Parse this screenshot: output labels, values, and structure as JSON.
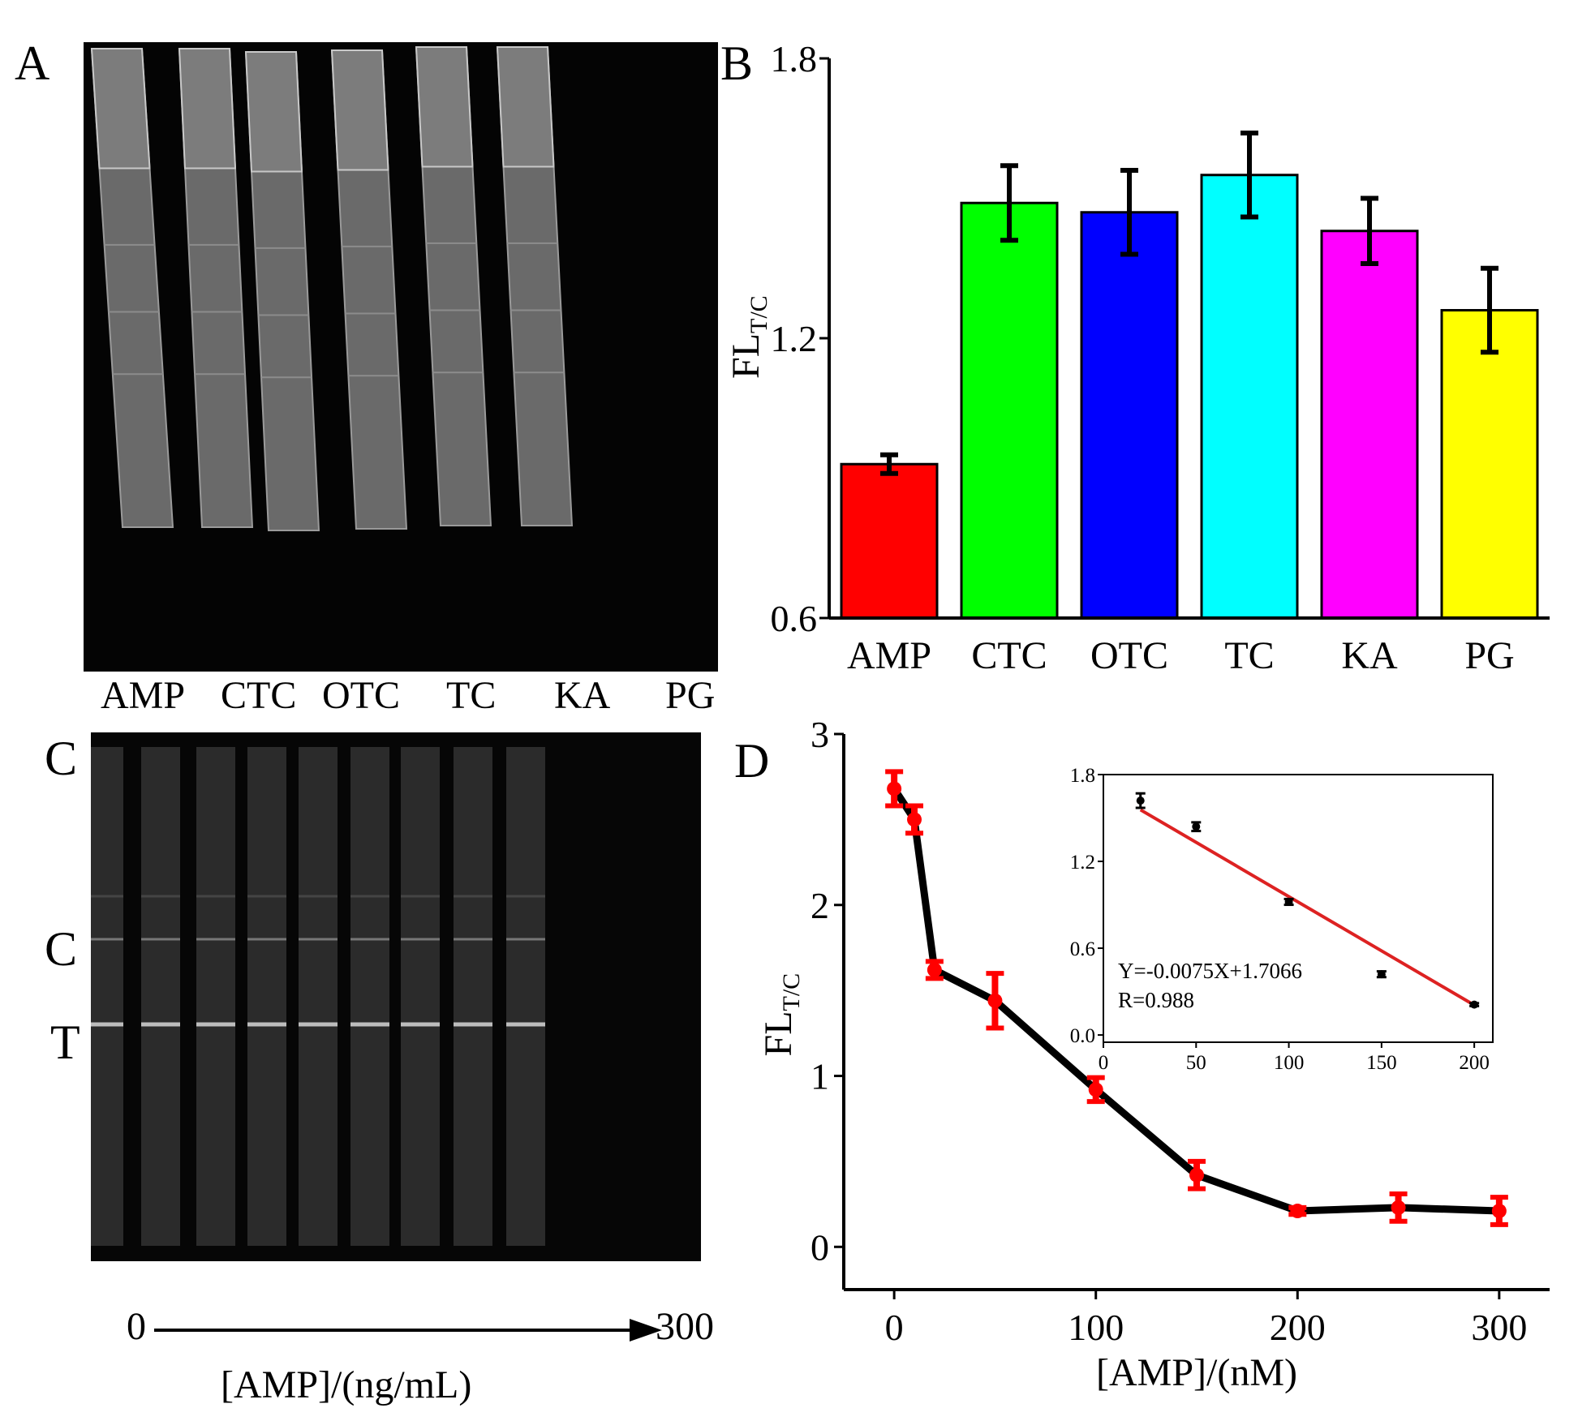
{
  "panel_a": {
    "label": "A",
    "strip_labels": [
      "AMP",
      "CTC",
      "OTC",
      "TC",
      "KA",
      "PG"
    ]
  },
  "panel_c": {
    "label": "C",
    "line_labels": [
      "C",
      "T"
    ],
    "arrow_start": "0",
    "arrow_end": "300",
    "axis_caption": "[AMP]/(ng/mL)",
    "strip_count": 9
  },
  "chart_data": [
    {
      "id": "B",
      "panel_label": "B",
      "type": "bar",
      "title": "",
      "categories": [
        "AMP",
        "CTC",
        "OTC",
        "TC",
        "KA",
        "PG"
      ],
      "values": [
        0.93,
        1.49,
        1.47,
        1.55,
        1.43,
        1.26
      ],
      "errors": [
        0.02,
        0.08,
        0.09,
        0.09,
        0.07,
        0.09
      ],
      "colors": [
        "#ff0000",
        "#00ff00",
        "#0000ff",
        "#00ffff",
        "#ff00ff",
        "#ffff00"
      ],
      "ylabel_main": "FL",
      "ylabel_sub": "T/C",
      "xlabel": "",
      "ylim": [
        0.6,
        1.8
      ],
      "yticks": [
        0.6,
        1.2,
        1.8
      ],
      "ytick_labels": [
        "0.6",
        "1.2",
        "1.8"
      ],
      "grid": false
    },
    {
      "id": "D",
      "panel_label": "D",
      "type": "line",
      "x": [
        0,
        10,
        20,
        50,
        100,
        150,
        200,
        250,
        300
      ],
      "y": [
        2.68,
        2.5,
        1.62,
        1.44,
        0.92,
        0.42,
        0.21,
        0.23,
        0.21
      ],
      "errors": [
        0.1,
        0.08,
        0.05,
        0.16,
        0.07,
        0.08,
        0.02,
        0.08,
        0.08
      ],
      "line_color": "#000000",
      "marker_color": "#ff0000",
      "xlabel": "[AMP]/(nM)",
      "ylabel_main": "FL",
      "ylabel_sub": "T/C",
      "xlim": [
        -25,
        325
      ],
      "ylim": [
        -0.25,
        3.0
      ],
      "xticks": [
        0,
        100,
        200,
        300
      ],
      "xtick_labels": [
        "0",
        "100",
        "200",
        "300"
      ],
      "yticks": [
        0,
        1,
        2,
        3
      ],
      "ytick_labels": [
        "0",
        "1",
        "2",
        "3"
      ],
      "grid": false,
      "inset": {
        "type": "scatter",
        "x": [
          20,
          50,
          100,
          150,
          200
        ],
        "y": [
          1.62,
          1.44,
          0.92,
          0.42,
          0.21
        ],
        "errors": [
          0.05,
          0.03,
          0.02,
          0.02,
          0.01
        ],
        "fit_line": {
          "x": [
            20,
            200
          ],
          "y": [
            1.5566,
            0.2066
          ],
          "color": "#dd2222"
        },
        "equation": "Y=-0.0075X+1.7066",
        "r_value": "R=0.988",
        "xlim": [
          0,
          210
        ],
        "ylim": [
          -0.05,
          1.8
        ],
        "xticks": [
          0,
          50,
          100,
          150,
          200
        ],
        "xtick_labels": [
          "0",
          "50",
          "100",
          "150",
          "200"
        ],
        "yticks": [
          0.0,
          0.6,
          1.2,
          1.8
        ],
        "ytick_labels": [
          "0.0",
          "0.6",
          "1.2",
          "1.8"
        ]
      }
    }
  ]
}
